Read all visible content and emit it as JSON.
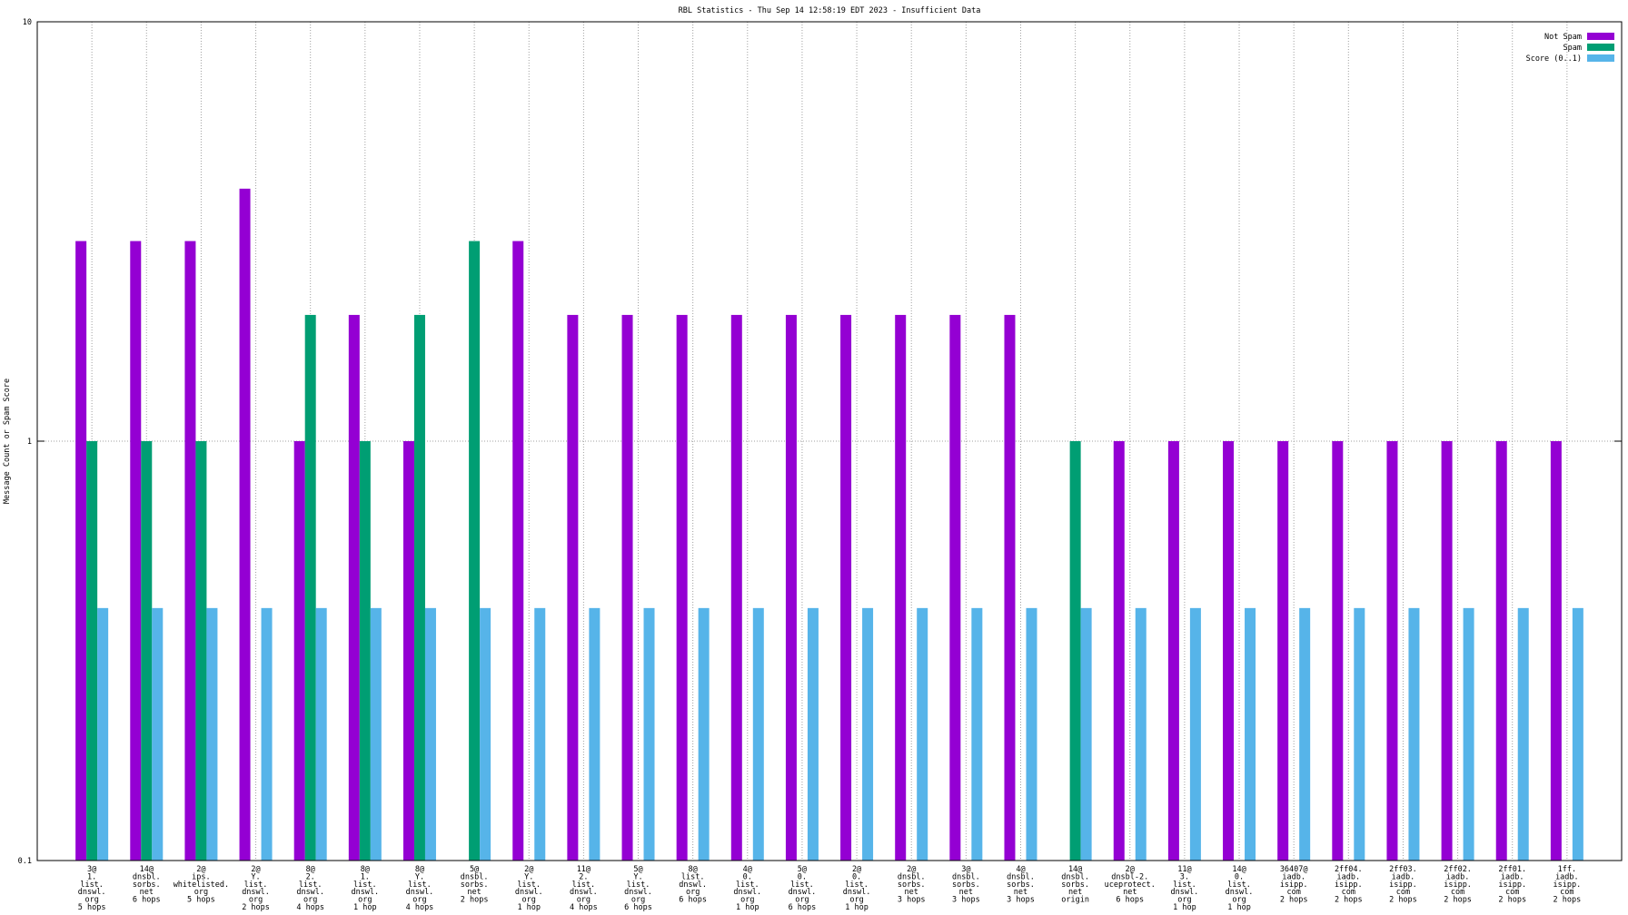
{
  "chart_data": {
    "type": "bar",
    "title": "RBL Statistics - Thu Sep 14 12:58:19 EDT 2023 - Insufficient Data",
    "y_label": "Message Count or Spam Score",
    "log_scale": true,
    "grid": true,
    "legend_position": "top-right",
    "ylim": [
      0.1,
      10
    ],
    "yticks": [
      0.1,
      1,
      10
    ],
    "categories": [
      [
        "3@",
        "1.",
        "list.",
        "dnswl.",
        "org",
        "5 hops"
      ],
      [
        "14@",
        "dnsbl.",
        "sorbs.",
        "net",
        "6 hops"
      ],
      [
        "2@",
        "ips.",
        "whitelisted.",
        "org",
        "5 hops"
      ],
      [
        "2@",
        "Y.",
        "list.",
        "dnswl.",
        "org",
        "2 hops"
      ],
      [
        "8@",
        "2.",
        "list.",
        "dnswl.",
        "org",
        "4 hops"
      ],
      [
        "8@",
        "1.",
        "list.",
        "dnswl.",
        "org",
        "1 hop"
      ],
      [
        "8@",
        "Y.",
        "list.",
        "dnswl.",
        "org",
        "4 hops"
      ],
      [
        "5@",
        "dnsbl.",
        "sorbs.",
        "net",
        "2 hops"
      ],
      [
        "2@",
        "Y.",
        "list.",
        "dnswl.",
        "org",
        "1 hop"
      ],
      [
        "11@",
        "2.",
        "list.",
        "dnswl.",
        "org",
        "4 hops"
      ],
      [
        "5@",
        "Y.",
        "list.",
        "dnswl.",
        "org",
        "6 hops"
      ],
      [
        "8@",
        "list.",
        "dnswl.",
        "org",
        "6 hops"
      ],
      [
        "4@",
        "0.",
        "list.",
        "dnswl.",
        "org",
        "1 hop"
      ],
      [
        "5@",
        "0.",
        "list.",
        "dnswl.",
        "org",
        "6 hops"
      ],
      [
        "2@",
        "0.",
        "list.",
        "dnswl.",
        "org",
        "1 hop"
      ],
      [
        "2@",
        "dnsbl.",
        "sorbs.",
        "net",
        "3 hops"
      ],
      [
        "3@",
        "dnsbl.",
        "sorbs.",
        "net",
        "3 hops"
      ],
      [
        "4@",
        "dnsbl.",
        "sorbs.",
        "net",
        "3 hops"
      ],
      [
        "14@",
        "dnsbl.",
        "sorbs.",
        "net",
        "origin"
      ],
      [
        "2@",
        "dnsbl-2.",
        "uceprotect.",
        "net",
        "6 hops"
      ],
      [
        "11@",
        "3.",
        "list.",
        "dnswl.",
        "org",
        "1 hop"
      ],
      [
        "14@",
        "0.",
        "list.",
        "dnswl.",
        "org",
        "1 hop"
      ],
      [
        "36407@",
        "iadb.",
        "isipp.",
        "com",
        "2 hops"
      ],
      [
        "2ff04.",
        "iadb.",
        "isipp.",
        "com",
        "2 hops"
      ],
      [
        "2ff03.",
        "iadb.",
        "isipp.",
        "com",
        "2 hops"
      ],
      [
        "2ff02.",
        "iadb.",
        "isipp.",
        "com",
        "2 hops"
      ],
      [
        "2ff01.",
        "iadb.",
        "isipp.",
        "com",
        "2 hops"
      ],
      [
        "1ff.",
        "iadb.",
        "isipp.",
        "com",
        "2 hops"
      ]
    ],
    "series": [
      {
        "name": "Not Spam",
        "color": "#9400d3",
        "values": [
          3,
          3,
          3,
          4,
          1,
          2,
          1,
          null,
          3,
          2,
          2,
          2,
          2,
          2,
          2,
          2,
          2,
          2,
          null,
          1,
          1,
          1,
          1,
          1,
          1,
          1,
          1,
          1
        ]
      },
      {
        "name": "Spam",
        "color": "#009e73",
        "values": [
          1,
          1,
          1,
          null,
          2,
          1,
          2,
          3,
          null,
          null,
          null,
          null,
          null,
          null,
          null,
          null,
          null,
          null,
          1,
          null,
          null,
          null,
          null,
          null,
          null,
          null,
          null,
          null
        ]
      },
      {
        "name": "Score (0..1)",
        "color": "#56b4e9",
        "values": [
          0.4,
          0.4,
          0.4,
          0.4,
          0.4,
          0.4,
          0.4,
          0.4,
          0.4,
          0.4,
          0.4,
          0.4,
          0.4,
          0.4,
          0.4,
          0.4,
          0.4,
          0.4,
          0.4,
          0.4,
          0.4,
          0.4,
          0.4,
          0.4,
          0.4,
          0.4,
          0.4,
          0.4
        ]
      }
    ]
  }
}
